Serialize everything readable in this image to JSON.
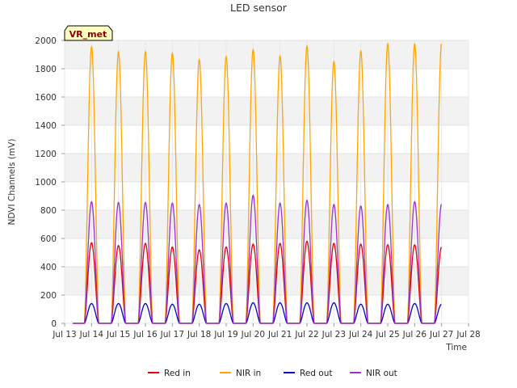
{
  "chart_data": {
    "type": "line",
    "title": "LED sensor",
    "xlabel": "Time",
    "ylabel": "NDVI Channels (mV)",
    "badge": "VR_met",
    "ylim": [
      0,
      2000
    ],
    "yticks": [
      0,
      200,
      400,
      600,
      800,
      1000,
      1200,
      1400,
      1600,
      1800,
      2000
    ],
    "xlim": [
      13,
      28
    ],
    "xticks": [
      13,
      14,
      15,
      16,
      17,
      18,
      19,
      20,
      21,
      22,
      23,
      24,
      25,
      26,
      27,
      28
    ],
    "xtick_labels": [
      "Jul 13",
      "Jul 14",
      "Jul 15",
      "Jul 16",
      "Jul 17",
      "Jul 18",
      "Jul 19",
      "Jul 20",
      "Jul 21",
      "Jul 22",
      "Jul 23",
      "Jul 24",
      "Jul 25",
      "Jul 26",
      "Jul 27",
      "Jul 28"
    ],
    "grid": true,
    "legend_position": "bottom",
    "x_note": "x values are day-of-July (decimal); each series peaks once daily near local noon",
    "series": [
      {
        "name": "Red in",
        "color": "#dd0000",
        "daily_peaks": [
          {
            "day": 14,
            "peak": 570
          },
          {
            "day": 15,
            "peak": 550
          },
          {
            "day": 16,
            "peak": 565
          },
          {
            "day": 17,
            "peak": 540
          },
          {
            "day": 18,
            "peak": 520
          },
          {
            "day": 19,
            "peak": 540
          },
          {
            "day": 20,
            "peak": 560
          },
          {
            "day": 21,
            "peak": 565
          },
          {
            "day": 22,
            "peak": 580
          },
          {
            "day": 23,
            "peak": 565
          },
          {
            "day": 24,
            "peak": 560
          },
          {
            "day": 25,
            "peak": 555
          },
          {
            "day": 26,
            "peak": 555
          },
          {
            "day": 27,
            "peak": 540
          }
        ]
      },
      {
        "name": "NIR in",
        "color": "#ffa500",
        "daily_peaks": [
          {
            "day": 14,
            "peak": 1955
          },
          {
            "day": 15,
            "peak": 1920
          },
          {
            "day": 16,
            "peak": 1920
          },
          {
            "day": 17,
            "peak": 1910
          },
          {
            "day": 18,
            "peak": 1865
          },
          {
            "day": 19,
            "peak": 1885
          },
          {
            "day": 20,
            "peak": 1935
          },
          {
            "day": 21,
            "peak": 1890
          },
          {
            "day": 22,
            "peak": 1960
          },
          {
            "day": 23,
            "peak": 1850
          },
          {
            "day": 24,
            "peak": 1925
          },
          {
            "day": 25,
            "peak": 1975
          },
          {
            "day": 26,
            "peak": 1975
          },
          {
            "day": 27,
            "peak": 1980
          }
        ]
      },
      {
        "name": "Red out",
        "color": "#0000cc",
        "daily_peaks": [
          {
            "day": 14,
            "peak": 140
          },
          {
            "day": 15,
            "peak": 140
          },
          {
            "day": 16,
            "peak": 140
          },
          {
            "day": 17,
            "peak": 135
          },
          {
            "day": 18,
            "peak": 135
          },
          {
            "day": 19,
            "peak": 140
          },
          {
            "day": 20,
            "peak": 145
          },
          {
            "day": 21,
            "peak": 145
          },
          {
            "day": 22,
            "peak": 145
          },
          {
            "day": 23,
            "peak": 145
          },
          {
            "day": 24,
            "peak": 135
          },
          {
            "day": 25,
            "peak": 135
          },
          {
            "day": 26,
            "peak": 140
          },
          {
            "day": 27,
            "peak": 135
          }
        ]
      },
      {
        "name": "NIR out",
        "color": "#9a32cd",
        "daily_peaks": [
          {
            "day": 14,
            "peak": 860
          },
          {
            "day": 15,
            "peak": 855
          },
          {
            "day": 16,
            "peak": 855
          },
          {
            "day": 17,
            "peak": 850
          },
          {
            "day": 18,
            "peak": 840
          },
          {
            "day": 19,
            "peak": 850
          },
          {
            "day": 20,
            "peak": 905
          },
          {
            "day": 21,
            "peak": 850
          },
          {
            "day": 22,
            "peak": 870
          },
          {
            "day": 23,
            "peak": 840
          },
          {
            "day": 24,
            "peak": 830
          },
          {
            "day": 25,
            "peak": 840
          },
          {
            "day": 26,
            "peak": 860
          },
          {
            "day": 27,
            "peak": 845
          }
        ]
      }
    ]
  }
}
